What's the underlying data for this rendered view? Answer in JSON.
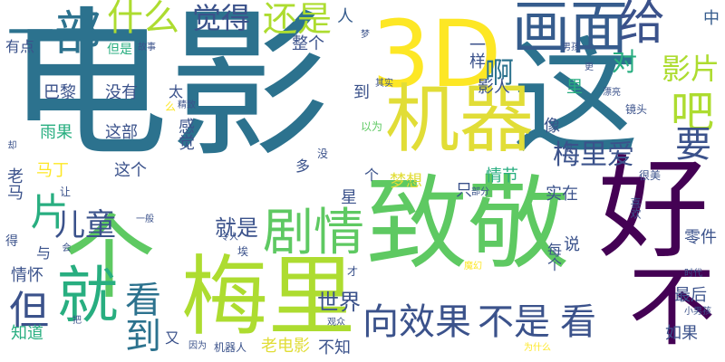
{
  "palette": {
    "navy": "#46327e",
    "indigo": "#3b528b",
    "slate": "#365c8d",
    "steel": "#2c728e",
    "teal": "#21918c",
    "sea": "#28ae80",
    "green": "#5ec962",
    "lime": "#addc30",
    "yellow": "#e1dd37",
    "gold": "#fde725",
    "purple": "#440154"
  },
  "words": [
    {
      "id": "dianying",
      "text": "电影",
      "color": "steel",
      "vertical": false
    },
    {
      "id": "3d",
      "text": "3D",
      "color": "gold",
      "vertical": false
    },
    {
      "id": "zhe",
      "text": "这",
      "color": "steel",
      "vertical": false
    },
    {
      "id": "zhijing",
      "text": "致敬",
      "color": "green",
      "vertical": false
    },
    {
      "id": "hao",
      "text": "好",
      "color": "purple",
      "vertical": false
    },
    {
      "id": "ge",
      "text": "个",
      "color": "green",
      "vertical": true
    },
    {
      "id": "meili",
      "text": "梅里",
      "color": "lime",
      "vertical": false
    },
    {
      "id": "jiu",
      "text": "就",
      "color": "sea",
      "vertical": true
    },
    {
      "id": "jiqi",
      "text": "机器",
      "color": "yellow",
      "vertical": false
    },
    {
      "id": "huamian",
      "text": "画面",
      "color": "slate",
      "vertical": false
    },
    {
      "id": "bu",
      "text": "不",
      "color": "purple",
      "vertical": true
    },
    {
      "id": "yibu",
      "text": "一部",
      "color": "steel",
      "vertical": false
    },
    {
      "id": "shenme",
      "text": "什么",
      "color": "lime",
      "vertical": false
    },
    {
      "id": "juede",
      "text": "觉得",
      "color": "indigo",
      "vertical": false
    },
    {
      "id": "haishi",
      "text": "还是",
      "color": "lime",
      "vertical": false
    },
    {
      "id": "ren",
      "text": "人",
      "color": "slate",
      "vertical": false
    },
    {
      "id": "gei",
      "text": "给",
      "color": "indigo",
      "vertical": false
    },
    {
      "id": "dui",
      "text": "对",
      "color": "sea",
      "vertical": false
    },
    {
      "id": "zhong",
      "text": "中",
      "color": "slate",
      "vertical": false
    },
    {
      "id": "ba",
      "text": "吧",
      "color": "lime",
      "vertical": false
    },
    {
      "id": "yingpian",
      "text": "影片",
      "color": "lime",
      "vertical": false
    },
    {
      "id": "a",
      "text": "啊",
      "color": "steel",
      "vertical": false
    },
    {
      "id": "yao",
      "text": "要",
      "color": "indigo",
      "vertical": false
    },
    {
      "id": "juqing",
      "text": "剧情",
      "color": "green",
      "vertical": false
    },
    {
      "id": "pian",
      "text": "片",
      "color": "sea",
      "vertical": true
    },
    {
      "id": "ertong",
      "text": "儿童",
      "color": "indigo",
      "vertical": false
    },
    {
      "id": "dan",
      "text": "但",
      "color": "indigo",
      "vertical": false
    },
    {
      "id": "kandao",
      "text": "看到",
      "color": "steel",
      "vertical": true
    },
    {
      "id": "xiang",
      "text": "向",
      "color": "indigo",
      "vertical": false
    },
    {
      "id": "xiaoguo",
      "text": "效果",
      "color": "indigo",
      "vertical": false
    },
    {
      "id": "bushi",
      "text": "不是",
      "color": "indigo",
      "vertical": false
    },
    {
      "id": "kan",
      "text": "看",
      "color": "indigo",
      "vertical": false
    },
    {
      "id": "shijie",
      "text": "世界",
      "color": "indigo",
      "vertical": false
    },
    {
      "id": "meiliai",
      "text": "梅里爱",
      "color": "indigo",
      "vertical": false
    },
    {
      "id": "jiushi",
      "text": "就是",
      "color": "indigo",
      "vertical": false
    },
    {
      "id": "youdian",
      "text": "有点",
      "color": "indigo",
      "vertical": false
    },
    {
      "id": "danshi",
      "text": "但是",
      "color": "sea",
      "vertical": false
    },
    {
      "id": "gushi",
      "text": "故事",
      "color": "indigo",
      "vertical": false
    },
    {
      "id": "zhengge",
      "text": "整个",
      "color": "indigo",
      "vertical": false
    },
    {
      "id": "meng",
      "text": "梦",
      "color": "indigo",
      "vertical": false
    },
    {
      "id": "yiyang",
      "text": "一样",
      "color": "indigo",
      "vertical": true
    },
    {
      "id": "nanhai",
      "text": "男孩",
      "color": "indigo",
      "vertical": false
    },
    {
      "id": "geng",
      "text": "更",
      "color": "indigo",
      "vertical": false
    },
    {
      "id": "bali",
      "text": "巴黎",
      "color": "indigo",
      "vertical": false
    },
    {
      "id": "meiyou",
      "text": "没有",
      "color": "indigo",
      "vertical": false
    },
    {
      "id": "tai",
      "text": "太",
      "color": "indigo",
      "vertical": false
    },
    {
      "id": "me",
      "text": "么",
      "color": "gold",
      "vertical": false
    },
    {
      "id": "jingzhi",
      "text": "精致",
      "color": "indigo",
      "vertical": false
    },
    {
      "id": "dao",
      "text": "到",
      "color": "indigo",
      "vertical": false
    },
    {
      "id": "qishi",
      "text": "其实",
      "color": "indigo",
      "vertical": false
    },
    {
      "id": "yingren",
      "text": "影人",
      "color": "indigo",
      "vertical": false
    },
    {
      "id": "li",
      "text": "里",
      "color": "sea",
      "vertical": false
    },
    {
      "id": "piaoliang",
      "text": "漂亮",
      "color": "indigo",
      "vertical": false
    },
    {
      "id": "jingtou",
      "text": "镜头",
      "color": "indigo",
      "vertical": false
    },
    {
      "id": "yuguo",
      "text": "雨果",
      "color": "sea",
      "vertical": false
    },
    {
      "id": "zhebu",
      "text": "这部",
      "color": "indigo",
      "vertical": false
    },
    {
      "id": "ganjue",
      "text": "感觉",
      "color": "indigo",
      "vertical": true
    },
    {
      "id": "yiwei",
      "text": "以为",
      "color": "green",
      "vertical": false
    },
    {
      "id": "xiang2",
      "text": "像",
      "color": "indigo",
      "vertical": false
    },
    {
      "id": "que",
      "text": "却",
      "color": "indigo",
      "vertical": true
    },
    {
      "id": "mei",
      "text": "没",
      "color": "indigo",
      "vertical": false
    },
    {
      "id": "duo",
      "text": "多",
      "color": "indigo",
      "vertical": false
    },
    {
      "id": "mading",
      "text": "马丁",
      "color": "gold",
      "vertical": false
    },
    {
      "id": "zhege",
      "text": "这个",
      "color": "indigo",
      "vertical": false
    },
    {
      "id": "ge2",
      "text": "个",
      "color": "indigo",
      "vertical": false
    },
    {
      "id": "qingjie",
      "text": "情节",
      "color": "sea",
      "vertical": false
    },
    {
      "id": "hen",
      "text": "很",
      "color": "indigo",
      "vertical": false
    },
    {
      "id": "hen_mei",
      "text": "很美",
      "color": "indigo",
      "vertical": false
    },
    {
      "id": "laoma",
      "text": "老马",
      "color": "indigo",
      "vertical": true
    },
    {
      "id": "mengxiang",
      "text": "梦想",
      "color": "yellow",
      "vertical": false
    },
    {
      "id": "zhi",
      "text": "只",
      "color": "indigo",
      "vertical": false
    },
    {
      "id": "bufen",
      "text": "部分",
      "color": "indigo",
      "vertical": false
    },
    {
      "id": "shizai",
      "text": "实在",
      "color": "indigo",
      "vertical": false
    },
    {
      "id": "xihuan",
      "text": "喜欢",
      "color": "indigo",
      "vertical": true
    },
    {
      "id": "rang",
      "text": "让",
      "color": "indigo",
      "vertical": false
    },
    {
      "id": "xing",
      "text": "星",
      "color": "indigo",
      "vertical": false
    },
    {
      "id": "yiban",
      "text": "一般",
      "color": "indigo",
      "vertical": false
    },
    {
      "id": "lingren",
      "text": "令人",
      "color": "indigo",
      "vertical": false
    },
    {
      "id": "de",
      "text": "得",
      "color": "indigo",
      "vertical": false
    },
    {
      "id": "yu",
      "text": "与",
      "color": "indigo",
      "vertical": false
    },
    {
      "id": "hui",
      "text": "会",
      "color": "indigo",
      "vertical": true
    },
    {
      "id": "shuo",
      "text": "说",
      "color": "indigo",
      "vertical": false
    },
    {
      "id": "meige",
      "text": "每个",
      "color": "indigo",
      "vertical": true
    },
    {
      "id": "lingjian",
      "text": "零件",
      "color": "indigo",
      "vertical": false
    },
    {
      "id": "shidai",
      "text": "时代",
      "color": "indigo",
      "vertical": false
    },
    {
      "id": "ai",
      "text": "埃",
      "color": "indigo",
      "vertical": false
    },
    {
      "id": "qinghuai",
      "text": "情怀",
      "color": "indigo",
      "vertical": false
    },
    {
      "id": "cai",
      "text": "才",
      "color": "indigo",
      "vertical": false
    },
    {
      "id": "zuihou",
      "text": "最后",
      "color": "indigo",
      "vertical": false
    },
    {
      "id": "mohuan",
      "text": "魔幻",
      "color": "gold",
      "vertical": false
    },
    {
      "id": "ba2",
      "text": "把",
      "color": "indigo",
      "vertical": false
    },
    {
      "id": "zhidao",
      "text": "知道",
      "color": "sea",
      "vertical": false
    },
    {
      "id": "you",
      "text": "又",
      "color": "indigo",
      "vertical": false
    },
    {
      "id": "guanzhong",
      "text": "观众",
      "color": "indigo",
      "vertical": false
    },
    {
      "id": "xiaonanhai",
      "text": "小男孩",
      "color": "indigo",
      "vertical": false
    },
    {
      "id": "ruguo",
      "text": "如果",
      "color": "indigo",
      "vertical": false
    },
    {
      "id": "yinwei",
      "text": "因为",
      "color": "indigo",
      "vertical": false
    },
    {
      "id": "jiqiren",
      "text": "机器人",
      "color": "indigo",
      "vertical": false
    },
    {
      "id": "laodianying",
      "text": "老电影",
      "color": "yellow",
      "vertical": false
    },
    {
      "id": "buzhi",
      "text": "不知",
      "color": "indigo",
      "vertical": false
    },
    {
      "id": "weishenme",
      "text": "为什么",
      "color": "gold",
      "vertical": false
    }
  ]
}
